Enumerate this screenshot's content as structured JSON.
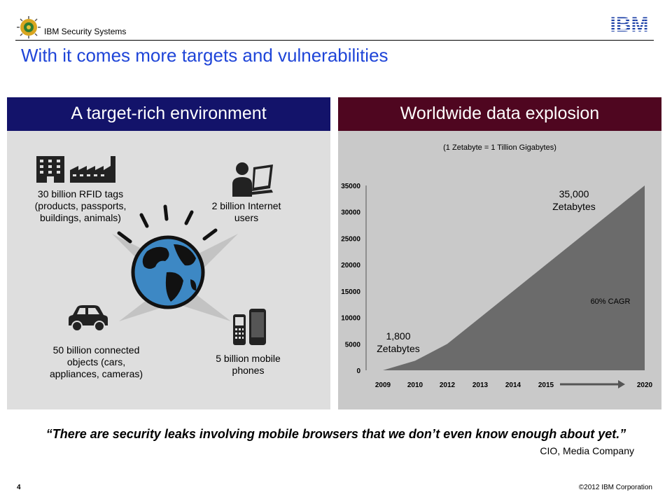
{
  "header": {
    "brand": "IBM Security Systems",
    "logo_text": "IBM",
    "title": "With it comes more targets and vulnerabilities"
  },
  "left_panel": {
    "heading": "A target-rich environment",
    "items": [
      {
        "text": "30 billion RFID tags\n(products, passports,\nbuildings, animals)",
        "icon": "building-factory-icon"
      },
      {
        "text": "2 billion Internet\nusers",
        "icon": "laptop-user-icon"
      },
      {
        "text": "50 billion connected\nobjects (cars,\nappliances, cameras)",
        "icon": "car-icon"
      },
      {
        "text": "5 billion mobile\nphones",
        "icon": "mobile-phones-icon"
      }
    ],
    "center_icon": "globe-icon"
  },
  "right_panel": {
    "heading": "Worldwide data explosion",
    "note": "(1 Zetabyte = 1 Tillion Gigabytes)",
    "annotations": {
      "start": "1,800\nZetabytes",
      "end": "35,000\nZetabytes",
      "cagr": "60% CAGR"
    }
  },
  "chart_data": {
    "type": "area",
    "x": [
      "2009",
      "2010",
      "2012",
      "2013",
      "2014",
      "2015",
      "2020"
    ],
    "values": [
      0,
      1800,
      5000,
      10000,
      15000,
      20000,
      35000
    ],
    "y_ticks": [
      0,
      5000,
      10000,
      15000,
      20000,
      25000,
      30000,
      35000
    ],
    "ylim": [
      0,
      35000
    ],
    "fill_color": "#6b6b6b",
    "background": "#c9c9c9"
  },
  "footer": {
    "quote": "“There are security leaks involving mobile browsers that we don’t even know enough about yet.”",
    "attribution": "CIO, Media Company",
    "page_number": "4",
    "copyright": "©2012 IBM Corporation"
  },
  "colors": {
    "title": "#1f45d8",
    "left_header": "#13136a",
    "right_header": "#4f0620"
  }
}
